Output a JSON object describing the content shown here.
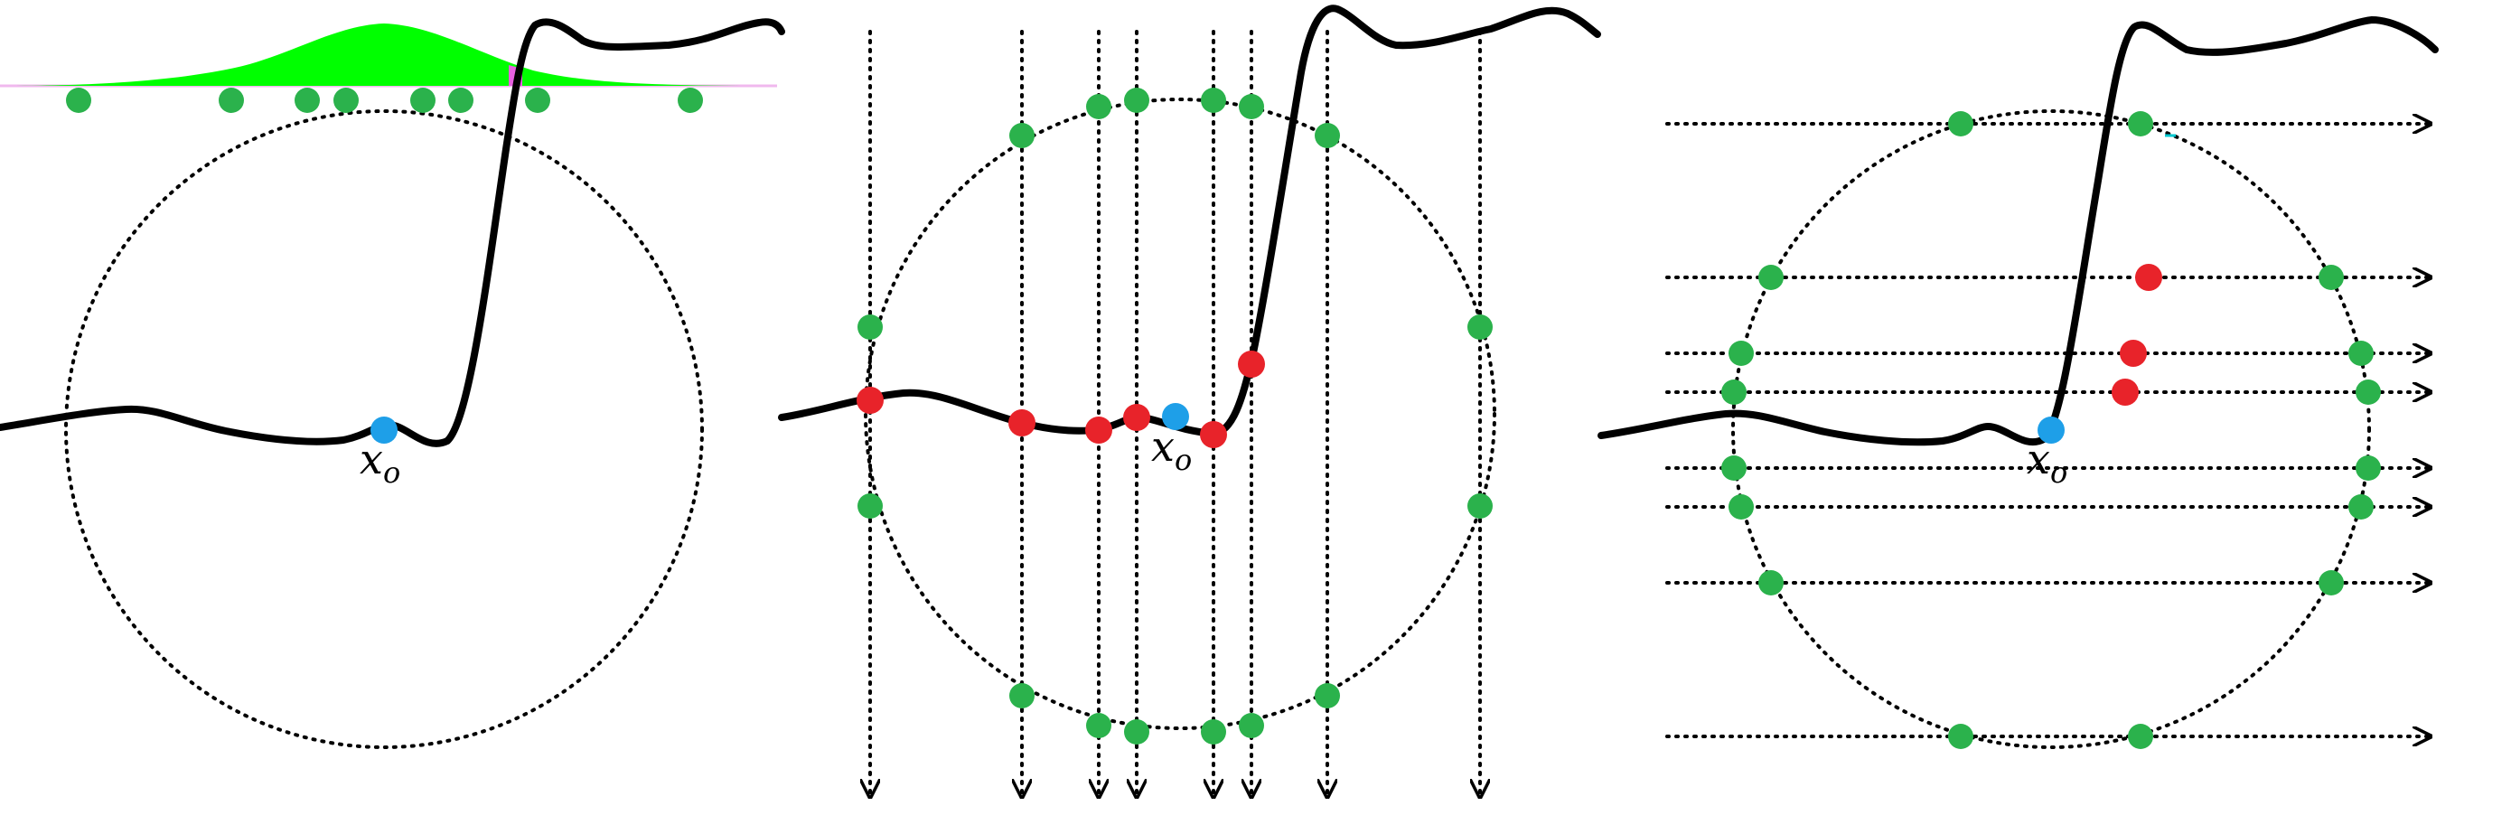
{
  "colors": {
    "curve": "#000000",
    "circle": "#000000",
    "sample_point": "#2bb24c",
    "hit_point": "#e8232a",
    "origin_point": "#1e9fe8",
    "density": "#00ff00",
    "density_overlap": "#e860e0"
  },
  "origin_label": {
    "base": "x",
    "subscript": "o"
  },
  "panels": [
    {
      "name": "gaussian-sampling-panel",
      "label": ""
    },
    {
      "name": "vertical-rays-panel",
      "label": ""
    },
    {
      "name": "horizontal-rays-panel",
      "label": ""
    }
  ]
}
